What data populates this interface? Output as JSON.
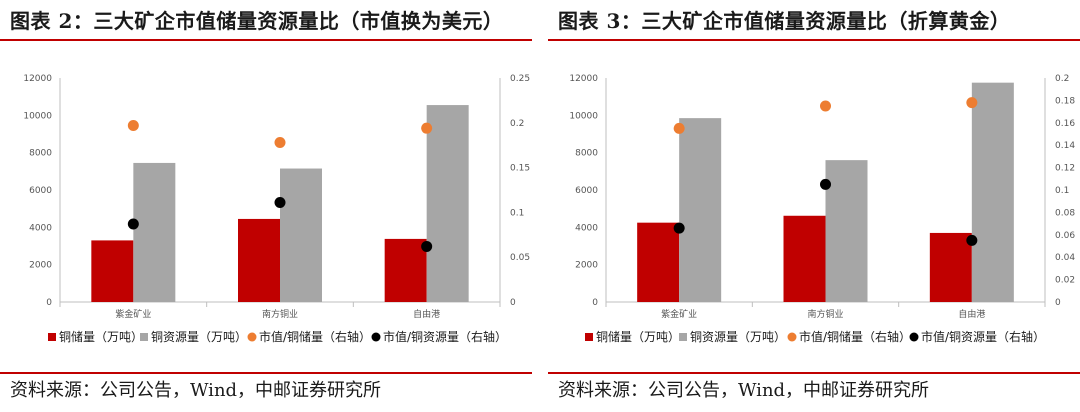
{
  "panels": [
    {
      "title": "图表 2：三大矿企市值储量资源量比（市值换为美元）",
      "source": "资料来源：公司公告，Wind，中邮证券研究所"
    },
    {
      "title": "图表 3：三大矿企市值储量资源量比（折算黄金）",
      "source": "资料来源：公司公告，Wind，中邮证券研究所"
    }
  ],
  "colors": {
    "accent_rule": "#c00000",
    "copper_reserve": "#c00000",
    "copper_resource": "#a6a6a6",
    "ratio_reserve": "#ed7d31",
    "ratio_resource": "#000000"
  },
  "chart_data": [
    {
      "type": "bar",
      "categories": [
        "紫金矿业",
        "南方铜业",
        "自由港"
      ],
      "y_left": {
        "lim": [
          0,
          12000
        ],
        "ticks": [
          "0",
          "2000",
          "4000",
          "6000",
          "8000",
          "10000",
          "12000"
        ]
      },
      "y_right": {
        "lim": [
          0,
          0.25
        ],
        "ticks": [
          "0",
          "0.05",
          "0.1",
          "0.15",
          "0.2",
          "0.25"
        ]
      },
      "series": [
        {
          "name": "铜储量（万吨）",
          "kind": "bar",
          "axis": "left",
          "color": "#c00000",
          "values": [
            3300,
            4450,
            3380
          ]
        },
        {
          "name": "铜资源量（万吨）",
          "kind": "bar",
          "axis": "left",
          "color": "#a6a6a6",
          "values": [
            7450,
            7150,
            10550
          ]
        },
        {
          "name": "市值/铜储量（右轴）",
          "kind": "scatter",
          "axis": "right",
          "color": "#ed7d31",
          "values": [
            0.197,
            0.178,
            0.194
          ]
        },
        {
          "name": "市值/铜资源量（右轴）",
          "kind": "scatter",
          "axis": "right",
          "color": "#000000",
          "values": [
            0.087,
            0.111,
            0.062
          ]
        }
      ],
      "legend_position": "bottom",
      "grid": false
    },
    {
      "type": "bar",
      "categories": [
        "紫金矿业",
        "南方铜业",
        "自由港"
      ],
      "y_left": {
        "lim": [
          0,
          12000
        ],
        "ticks": [
          "0",
          "2000",
          "4000",
          "6000",
          "8000",
          "10000",
          "12000"
        ]
      },
      "y_right": {
        "lim": [
          0,
          0.2
        ],
        "ticks": [
          "0",
          "0.02",
          "0.04",
          "0.06",
          "0.08",
          "0.1",
          "0.12",
          "0.14",
          "0.16",
          "0.18",
          "0.2"
        ]
      },
      "series": [
        {
          "name": "铜储量（万吨）",
          "kind": "bar",
          "axis": "left",
          "color": "#c00000",
          "values": [
            4250,
            4620,
            3700
          ]
        },
        {
          "name": "铜资源量（万吨）",
          "kind": "bar",
          "axis": "left",
          "color": "#a6a6a6",
          "values": [
            9850,
            7600,
            11750
          ]
        },
        {
          "name": "市值/铜储量（右轴）",
          "kind": "scatter",
          "axis": "right",
          "color": "#ed7d31",
          "values": [
            0.155,
            0.175,
            0.178
          ]
        },
        {
          "name": "市值/铜资源量（右轴）",
          "kind": "scatter",
          "axis": "right",
          "color": "#000000",
          "values": [
            0.066,
            0.105,
            0.055
          ]
        }
      ],
      "legend_position": "bottom",
      "grid": false
    }
  ]
}
